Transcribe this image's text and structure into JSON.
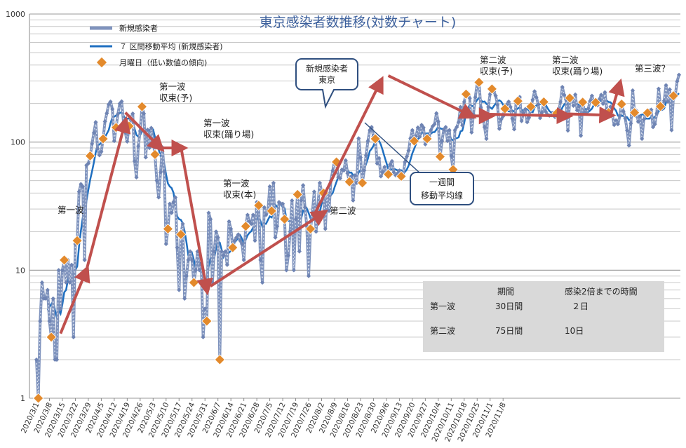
{
  "chart_data": {
    "type": "line",
    "title": "東京感染者数推移(対数チャート)",
    "y_scale": "log",
    "ylim": [
      1,
      1000
    ],
    "y_ticks": [
      1,
      10,
      100,
      1000
    ],
    "x_tick_labels": [
      "2020/3/1",
      "2020/3/8",
      "2020/3/15",
      "2020/3/22",
      "2020/3/29",
      "2020/4/5",
      "2020/4/12",
      "2020/4/19",
      "2020/4/26",
      "2020/5/3",
      "2020/5/10",
      "2020/5/17",
      "2020/5/24",
      "2020/5/31",
      "2020/6/7",
      "2020/6/14",
      "2020/6/21",
      "2020/6/28",
      "2020/7/5",
      "2020/7/12",
      "2020/7/19",
      "2020/7/26",
      "2020/8/2",
      "2020/8/9",
      "2020/8/16",
      "2020/8/23",
      "2020/8/30",
      "2020/9/6",
      "2020/9/13",
      "2020/9/20",
      "2020/9/27",
      "2020/10/4",
      "2020/10/11",
      "2020/10/18",
      "2020/10/25",
      "2020/11/1",
      "2020/11/8"
    ],
    "start_date": "2020-03-01",
    "legend": {
      "position": "top-left",
      "items": [
        {
          "label": "新規感染者",
          "color": "#7f93bd"
        },
        {
          "label": "７ 区間移動平均 (新規感染者)",
          "color": "#1f6fc0"
        },
        {
          "label": "月曜日（低い数値の傾向)",
          "color": "#e38a2c"
        }
      ]
    },
    "series": [
      {
        "name": "新規感染者",
        "color": "#7f93bd",
        "values": [
          2,
          1,
          4,
          8,
          6,
          6,
          7,
          4,
          3,
          6,
          2,
          2,
          10,
          5,
          10,
          12,
          8,
          12,
          8,
          11,
          3,
          16,
          17,
          41,
          47,
          45,
          12,
          66,
          68,
          78,
          97,
          118,
          143,
          89,
          79,
          84,
          106,
          145,
          168,
          197,
          207,
          181,
          102,
          130,
          166,
          200,
          208,
          143,
          119,
          101,
          133,
          153,
          167,
          71,
          53,
          93,
          122,
          189,
          167,
          76,
          125,
          90,
          129,
          101,
          80,
          50,
          37,
          58,
          91,
          59,
          16,
          21,
          33,
          28,
          34,
          37,
          15,
          7,
          19,
          23,
          6,
          9,
          12,
          14,
          12,
          8,
          10,
          14,
          10,
          11,
          3,
          5,
          4,
          28,
          25,
          8,
          14,
          20,
          18,
          2,
          14,
          13,
          14,
          11,
          24,
          21,
          15,
          17,
          18,
          19,
          17,
          16,
          12,
          22,
          27,
          24,
          23,
          27,
          17,
          34,
          32,
          12,
          8,
          31,
          27,
          29,
          45,
          29,
          48,
          18,
          22,
          34,
          33,
          33,
          25,
          10,
          13,
          20,
          35,
          10,
          25,
          39,
          14,
          35,
          46,
          31,
          22,
          9,
          21,
          28,
          41,
          20,
          32,
          48,
          41,
          40,
          21,
          40,
          29,
          50,
          60,
          71,
          70,
          53,
          52,
          61,
          60,
          72,
          57,
          49,
          54,
          35,
          55,
          48,
          107,
          76,
          48,
          60,
          79,
          102,
          124,
          131,
          111,
          106,
          68,
          75,
          54,
          58,
          64,
          57,
          56,
          67,
          71,
          58,
          55,
          57,
          60,
          54,
          55,
          70,
          77,
          86,
          107,
          124,
          102,
          111,
          130,
          110,
          136,
          130,
          96,
          106,
          111,
          124,
          133,
          138,
          168,
          145,
          77,
          102,
          125,
          131,
          102,
          124,
          78,
          61,
          124,
          131,
          143,
          188,
          135,
          206,
          237,
          243,
          220,
          119,
          165,
          224,
          286,
          293,
          187,
          165,
          131,
          106,
          188,
          237,
          260,
          248,
          230,
          195,
          127,
          151,
          159,
          182,
          196,
          207,
          188,
          152,
          126,
          203,
          209,
          225,
          146,
          170,
          181,
          143,
          155,
          189,
          214,
          249,
          224,
          197,
          154,
          170,
          206,
          173,
          164,
          161,
          162,
          169,
          157,
          168,
          172,
          206,
          269,
          234,
          214,
          123,
          221,
          226,
          192,
          235,
          177,
          189,
          112,
          205,
          170,
          167,
          183,
          209,
          230,
          202,
          204,
          194,
          216,
          234,
          199,
          245,
          181,
          170,
          189,
          163,
          136,
          148,
          138,
          159,
          198,
          174,
          153,
          123,
          94,
          140,
          253,
          170,
          176,
          144,
          158,
          106,
          150,
          163,
          169,
          176,
          179,
          131,
          138,
          168,
          261,
          190,
          183,
          210,
          278,
          207,
          258,
          124,
          230,
          233,
          298,
          335
        ],
        "values_note_omitted": false
      },
      {
        "name": "７ 区間移動平均 (新規感染者)",
        "color": "#1f6fc0",
        "values": []
      },
      {
        "name": "月曜日（低い数値の傾向)",
        "color": "#e38a2c",
        "values": []
      }
    ]
  },
  "callouts": {
    "tokyo": "新規感染者\n東京",
    "ma": "一週間\n移動平均線"
  },
  "annotations": [
    {
      "text": "第一波",
      "id": "a1"
    },
    {
      "text": "第一波\n収束(予)",
      "id": "a2"
    },
    {
      "text": "第一波\n収束(踊り場)",
      "id": "a3"
    },
    {
      "text": "第一波\n収束(本)",
      "id": "a4"
    },
    {
      "text": "第二波",
      "id": "a5"
    },
    {
      "text": "第二波\n収束(予)",
      "id": "a6"
    },
    {
      "text": "第二波\n収束(踊り場)",
      "id": "a7"
    },
    {
      "text": "第三波？",
      "id": "a8"
    }
  ],
  "summary_table": {
    "headers": [
      "",
      "期間",
      "感染2倍までの時間"
    ],
    "rows": [
      [
        "第一波",
        "30日間",
        "２日"
      ],
      [
        "第二波",
        "75日間",
        "10日"
      ]
    ]
  }
}
